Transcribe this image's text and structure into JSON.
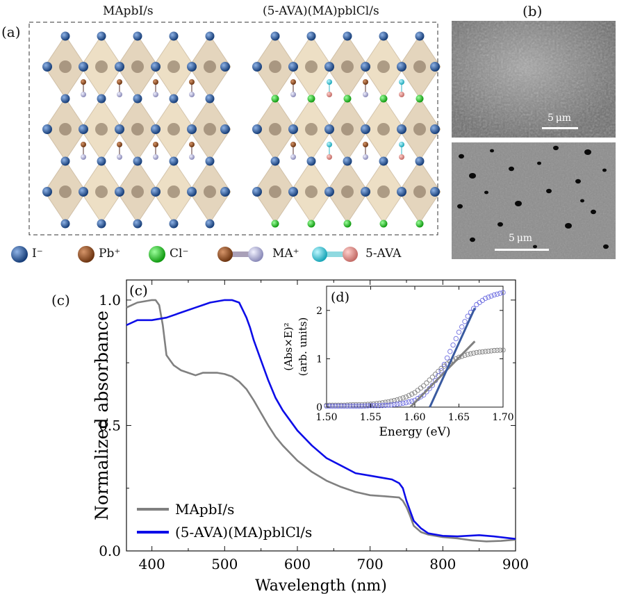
{
  "panel_a": {
    "label": "(a)",
    "left_title": "MApbI/s",
    "right_title": "(5-AVA)(MA)pblCl/s",
    "legend": [
      {
        "symbol": "I⁻",
        "icon": "iodide-atom",
        "color": "#1f4f8f"
      },
      {
        "symbol": "Pb⁺",
        "icon": "lead-atom",
        "color": "#8b4a1c"
      },
      {
        "symbol": "Cl⁻",
        "icon": "chloride-atom",
        "color": "#22c022"
      },
      {
        "symbol": "MA⁺",
        "icon": "ma-molecule",
        "color": "#6b4a33"
      },
      {
        "symbol": "5-AVA",
        "icon": "ava-molecule",
        "color": "#27b8c8"
      }
    ]
  },
  "panel_b": {
    "label": "(b)",
    "top_scale": "5 μm",
    "bottom_scale": "5 μm"
  },
  "panel_c_outer_label": "(c)",
  "chart_data": [
    {
      "type": "line",
      "panel_label": "(c)",
      "xlabel": "Wavelength (nm)",
      "ylabel": "Normalized absorbance",
      "xlim": [
        365,
        900
      ],
      "ylim": [
        0,
        1.08
      ],
      "xticks": [
        400,
        500,
        600,
        700,
        800,
        900
      ],
      "yticks": [
        0.0,
        0.5,
        1.0
      ],
      "legend_position": "bottom-left",
      "series": [
        {
          "name": "MApbI/s",
          "color": "#808080",
          "x": [
            365,
            380,
            400,
            405,
            410,
            415,
            420,
            425,
            430,
            440,
            450,
            460,
            470,
            480,
            490,
            500,
            510,
            520,
            530,
            540,
            550,
            560,
            570,
            580,
            600,
            620,
            640,
            660,
            680,
            700,
            720,
            740,
            745,
            750,
            755,
            760,
            770,
            780,
            800,
            820,
            840,
            860,
            880,
            900
          ],
          "y": [
            0.97,
            0.99,
            1.0,
            1.0,
            0.98,
            0.9,
            0.78,
            0.76,
            0.74,
            0.72,
            0.71,
            0.7,
            0.71,
            0.71,
            0.71,
            0.705,
            0.695,
            0.675,
            0.645,
            0.6,
            0.55,
            0.5,
            0.455,
            0.42,
            0.36,
            0.315,
            0.28,
            0.255,
            0.235,
            0.222,
            0.218,
            0.213,
            0.2,
            0.175,
            0.14,
            0.1,
            0.075,
            0.065,
            0.055,
            0.05,
            0.042,
            0.038,
            0.04,
            0.045
          ]
        },
        {
          "name": "(5-AVA)(MA)pblCl/s",
          "color": "#0d0de8",
          "x": [
            365,
            380,
            400,
            420,
            440,
            460,
            470,
            480,
            500,
            510,
            520,
            525,
            530,
            535,
            540,
            550,
            560,
            570,
            580,
            600,
            620,
            640,
            660,
            680,
            700,
            720,
            730,
            740,
            745,
            750,
            755,
            760,
            770,
            780,
            800,
            820,
            850,
            870,
            900
          ],
          "y": [
            0.9,
            0.92,
            0.92,
            0.93,
            0.95,
            0.97,
            0.98,
            0.99,
            1.0,
            1.0,
            0.99,
            0.96,
            0.93,
            0.89,
            0.84,
            0.76,
            0.68,
            0.61,
            0.56,
            0.48,
            0.42,
            0.37,
            0.34,
            0.31,
            0.3,
            0.29,
            0.285,
            0.27,
            0.25,
            0.2,
            0.16,
            0.12,
            0.09,
            0.07,
            0.06,
            0.058,
            0.063,
            0.058,
            0.048
          ]
        }
      ]
    },
    {
      "type": "scatter",
      "panel_label": "(d)",
      "xlabel": "Energy (eV)",
      "ylabel_line1": "(Abs×E)²",
      "ylabel_line2": "(arb. units)",
      "xlim": [
        1.5,
        1.7
      ],
      "ylim": [
        0,
        2.5
      ],
      "xticks": [
        1.5,
        1.55,
        1.6,
        1.65,
        1.7
      ],
      "yticks": [
        0,
        1,
        2
      ],
      "series": [
        {
          "name": "MApbI/s",
          "color": "#808080",
          "x": [
            1.5,
            1.51,
            1.52,
            1.53,
            1.54,
            1.55,
            1.56,
            1.57,
            1.58,
            1.59,
            1.6,
            1.61,
            1.62,
            1.63,
            1.64,
            1.65,
            1.66,
            1.67,
            1.68,
            1.69,
            1.7
          ],
          "y": [
            0.04,
            0.04,
            0.04,
            0.05,
            0.05,
            0.06,
            0.08,
            0.11,
            0.15,
            0.21,
            0.3,
            0.44,
            0.62,
            0.8,
            0.94,
            1.03,
            1.09,
            1.13,
            1.15,
            1.17,
            1.18
          ]
        },
        {
          "name": "(5-AVA)(MA)pblCl/s",
          "color": "#6d6de0",
          "x": [
            1.5,
            1.51,
            1.52,
            1.53,
            1.54,
            1.55,
            1.56,
            1.57,
            1.58,
            1.59,
            1.6,
            1.61,
            1.62,
            1.63,
            1.64,
            1.65,
            1.66,
            1.67,
            1.68,
            1.69,
            1.7
          ],
          "y": [
            0.02,
            0.02,
            0.02,
            0.02,
            0.02,
            0.03,
            0.03,
            0.04,
            0.06,
            0.09,
            0.14,
            0.25,
            0.45,
            0.75,
            1.15,
            1.55,
            1.88,
            2.12,
            2.25,
            2.32,
            2.37
          ]
        }
      ],
      "fit_lines": [
        {
          "name": "MApbI/s fit",
          "color": "#808080",
          "x": [
            1.595,
            1.668
          ],
          "y": [
            0.0,
            1.36
          ]
        },
        {
          "name": "(5-AVA)(MA)pblCl/s fit",
          "color": "#3a5aa0",
          "x": [
            1.617,
            1.668
          ],
          "y": [
            0.0,
            2.05
          ]
        }
      ]
    }
  ]
}
